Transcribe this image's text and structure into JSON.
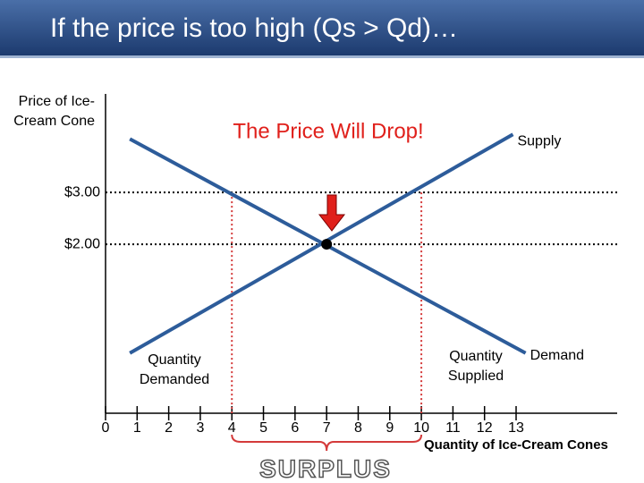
{
  "chart_data": {
    "type": "line",
    "title": "If the price is too high (Qs > Qd)…",
    "annotation": "The Price Will Drop!",
    "y_label": "Price of Ice-Cream Cone",
    "x_label": "Quantity of Ice-Cream Cones",
    "series": [
      {
        "name": "Supply",
        "color": "#2d5c9a",
        "x": [
          0.77,
          12.9
        ],
        "values": [
          -0.1,
          4.12
        ]
      },
      {
        "name": "Demand",
        "color": "#2d5c9a",
        "x": [
          0.77,
          13.3
        ],
        "values": [
          4.03,
          -0.1
        ]
      }
    ],
    "equilibrium": {
      "x": 7,
      "y": 2
    },
    "surplus": {
      "label": "SURPLUS",
      "from": 4,
      "to": 10,
      "price": 3,
      "demanded_label": "Quantity Demanded",
      "supplied_label": "Quantity Supplied"
    },
    "xlim": [
      0,
      16.2
    ],
    "ylim": [
      -1.26,
      4.9
    ],
    "xticks": [
      0,
      1,
      2,
      3,
      4,
      5,
      6,
      7,
      8,
      9,
      10,
      11,
      12,
      13
    ],
    "yticks": [
      {
        "value": 3,
        "label": "$3.00"
      },
      {
        "value": 2,
        "label": "$2.00"
      }
    ],
    "grid": true
  }
}
